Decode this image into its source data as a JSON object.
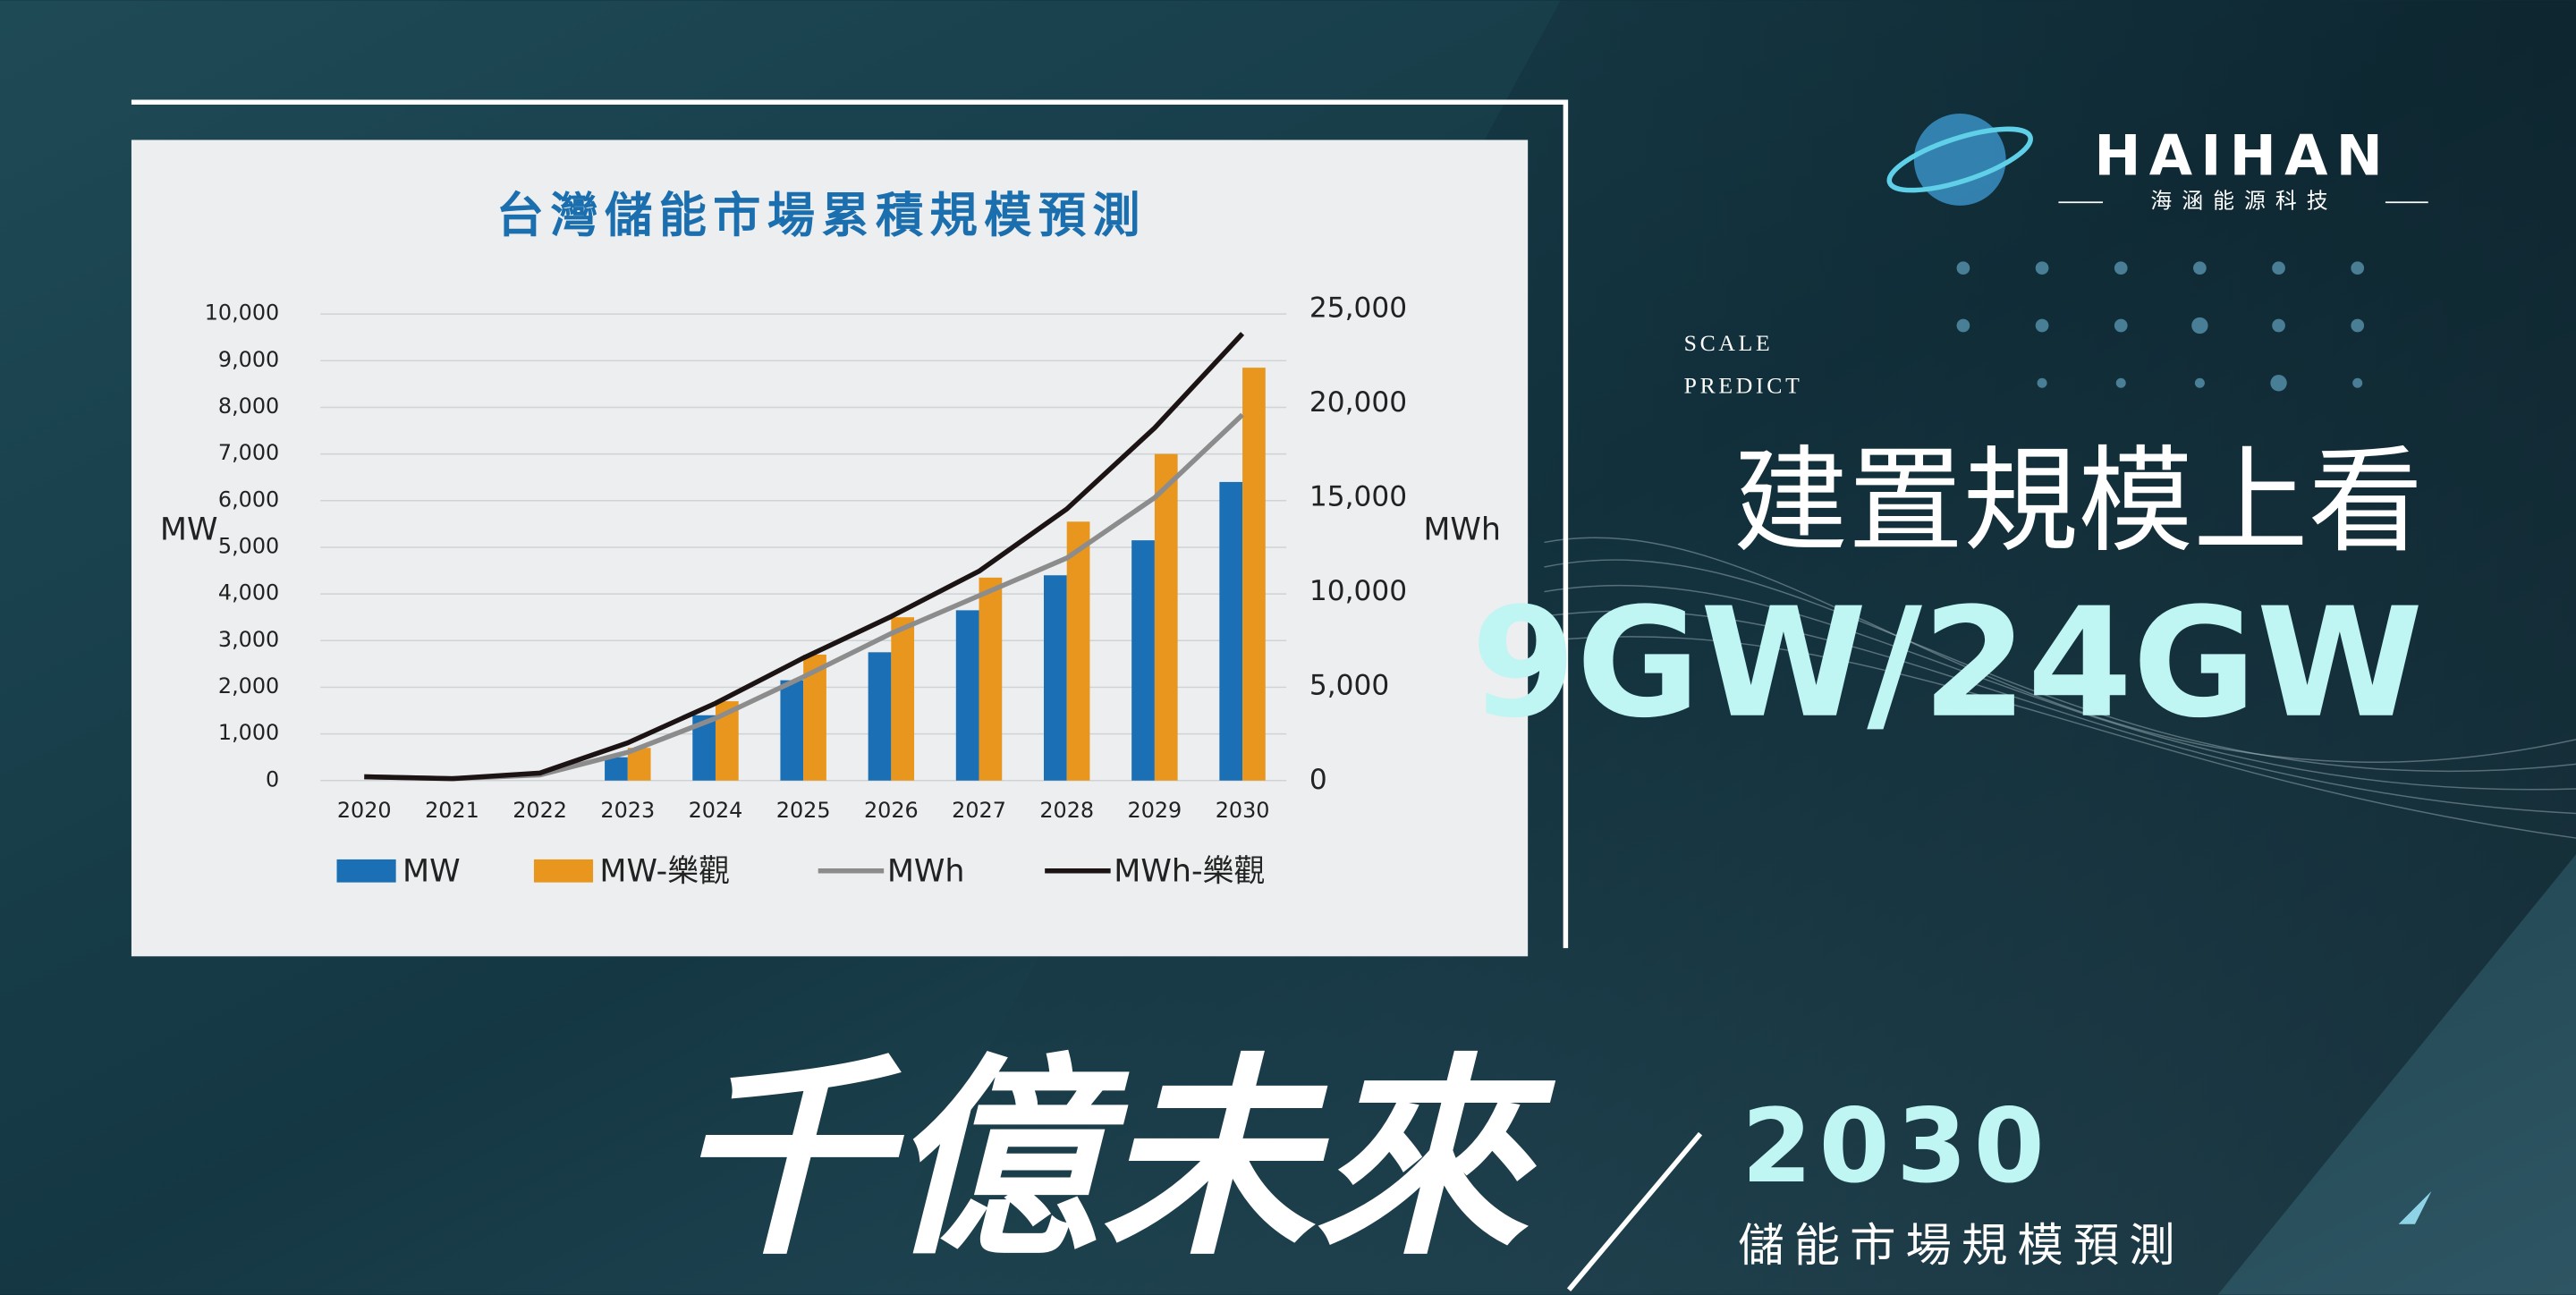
{
  "chart_data": {
    "type": "bar",
    "title": "台灣儲能市場累積規模預測",
    "y_label": "MW",
    "y2_label": "MWh",
    "categories": [
      "2020",
      "2021",
      "2022",
      "2023",
      "2024",
      "2025",
      "2026",
      "2027",
      "2028",
      "2029",
      "2030"
    ],
    "series": [
      {
        "name": "MW",
        "type": "bar",
        "color": "#1a6fb5",
        "values": [
          0,
          0,
          0,
          500,
          1400,
          2150,
          2750,
          3650,
          4400,
          5150,
          6400
        ]
      },
      {
        "name": "MW-樂觀",
        "type": "bar",
        "color": "#e8961e",
        "values": [
          0,
          0,
          0,
          700,
          1700,
          2700,
          3500,
          4350,
          5550,
          7000,
          8850
        ]
      },
      {
        "name": "MWh",
        "type": "line",
        "axis": "y2",
        "color": "#8c8c8c",
        "values": [
          200,
          100,
          300,
          1500,
          3300,
          5500,
          7800,
          9800,
          11800,
          15000,
          19400
        ]
      },
      {
        "name": "MWh-樂觀",
        "type": "line",
        "axis": "y2",
        "color": "#1c1414",
        "values": [
          200,
          100,
          400,
          2000,
          4100,
          6500,
          8700,
          11100,
          14400,
          18700,
          23700
        ]
      }
    ],
    "ylim": [
      0,
      10000
    ],
    "yticks": [
      0,
      {
        "value": 1000,
        "label": "1,000"
      },
      {
        "value": 2000,
        "label": "2,000"
      },
      {
        "value": 3000,
        "label": "3,000"
      },
      {
        "value": 4000,
        "label": "4,000"
      },
      {
        "value": 5000,
        "label": "5,000"
      },
      {
        "value": 6000,
        "label": "6,000"
      },
      {
        "value": 7000,
        "label": "7,000"
      },
      {
        "value": 8000,
        "label": "8,000"
      },
      {
        "value": 9000,
        "label": "9,000"
      },
      {
        "value": 10000,
        "label": "10,000"
      }
    ],
    "y2lim": [
      0,
      25000
    ],
    "y2ticks": [
      0,
      {
        "value": 5000,
        "label": "5,000"
      },
      {
        "value": 10000,
        "label": "10,000"
      },
      {
        "value": 15000,
        "label": "15,000"
      },
      {
        "value": 20000,
        "label": "20,000"
      },
      {
        "value": 25000,
        "label": "25,000"
      }
    ],
    "grid": true,
    "legend": "bottom"
  },
  "brand": {
    "name": "HAIHAN",
    "subtitle": "海涵能源科技"
  },
  "headline": {
    "tag_1": "SCALE",
    "tag_2": "PREDICT",
    "title": "建置規模上看",
    "figure": "9GW/24GW"
  },
  "footer": {
    "slogan": "千億未來",
    "year": "2030",
    "caption": "儲能市場規模預測"
  }
}
